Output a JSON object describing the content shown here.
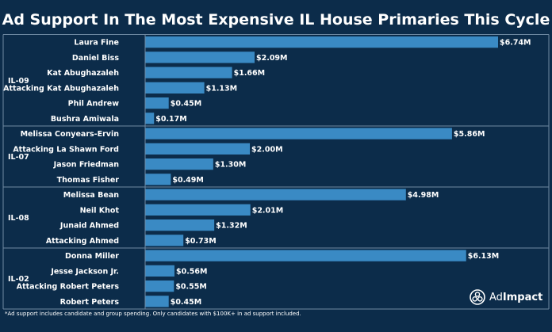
{
  "chart_data": {
    "type": "bar",
    "orientation": "horizontal",
    "title": "Ad Support In The Most Expensive IL House Primaries This Cycle",
    "value_prefix": "$",
    "value_suffix": "M",
    "xlim": [
      0,
      6.74
    ],
    "grid": false,
    "groups": [
      {
        "label": "IL-09",
        "bars": [
          {
            "label": "Laura Fine",
            "value": 6.74
          },
          {
            "label": "Daniel Biss",
            "value": 2.09
          },
          {
            "label": "Kat Abughazaleh",
            "value": 1.66
          },
          {
            "label": "Attacking Kat Abughazaleh",
            "value": 1.13
          },
          {
            "label": "Phil Andrew",
            "value": 0.45
          },
          {
            "label": "Bushra Amiwala",
            "value": 0.17
          }
        ]
      },
      {
        "label": "IL-07",
        "bars": [
          {
            "label": "Melissa Conyears-Ervin",
            "value": 5.86
          },
          {
            "label": "Attacking La Shawn Ford",
            "value": 2.0
          },
          {
            "label": "Jason Friedman",
            "value": 1.3
          },
          {
            "label": "Thomas Fisher",
            "value": 0.49
          }
        ]
      },
      {
        "label": "IL-08",
        "bars": [
          {
            "label": "Melissa Bean",
            "value": 4.98
          },
          {
            "label": "Neil Khot",
            "value": 2.01
          },
          {
            "label": "Junaid Ahmed",
            "value": 1.32
          },
          {
            "label": "Attacking Ahmed",
            "value": 0.73
          }
        ]
      },
      {
        "label": "IL-02",
        "bars": [
          {
            "label": "Donna Miller",
            "value": 6.13
          },
          {
            "label": "Jesse Jackson Jr.",
            "value": 0.56
          },
          {
            "label": "Attacking Robert Peters",
            "value": 0.55
          },
          {
            "label": "Robert Peters",
            "value": 0.45
          }
        ]
      }
    ]
  },
  "footnote": "*Ad support includes candidate and group spending. Only candidates with $100K+ in ad support included.",
  "logo": {
    "brand_prefix": "Ad",
    "brand_suffix": "Impact",
    "icon": "adimpact-logo-icon"
  },
  "colors": {
    "background": "#0c2c4a",
    "bar": "#3a8ac4",
    "text": "#ffffff",
    "divider": "#6f8aa3",
    "label_bg": "#ffffff",
    "value_bg": "#ffffff"
  }
}
